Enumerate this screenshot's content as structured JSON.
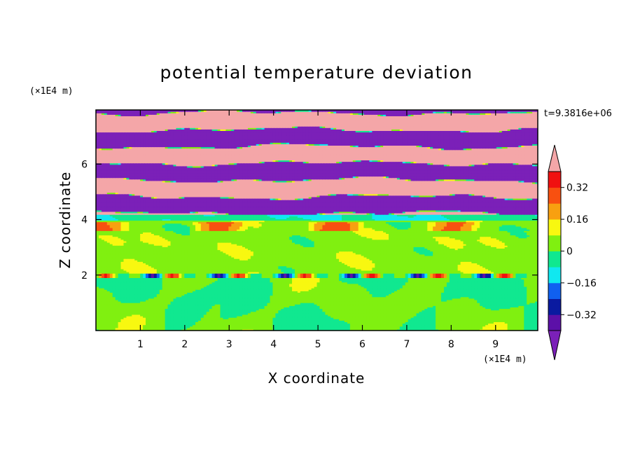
{
  "chart_data": {
    "type": "heatmap",
    "title": "potential temperature deviation",
    "xlabel": "X coordinate",
    "ylabel": "Z coordinate",
    "x_unit": "(×1E4 m)",
    "y_unit": "(×1E4 m)",
    "time_label": "t=9.3816e+06",
    "xlim": [
      0,
      9.95
    ],
    "ylim": [
      0,
      7.95
    ],
    "x_ticks": [
      1,
      2,
      3,
      4,
      5,
      6,
      7,
      8,
      9
    ],
    "y_ticks": [
      2,
      4,
      6
    ],
    "colorbar": {
      "levels": [
        -0.4,
        -0.32,
        -0.24,
        -0.16,
        -0.08,
        0,
        0.08,
        0.16,
        0.24,
        0.32,
        0.4
      ],
      "tick_labels": [
        "0.32",
        "0.16",
        "0",
        "−0.16",
        "−0.32"
      ],
      "tick_values": [
        0.32,
        0.16,
        0,
        -0.16,
        -0.32
      ],
      "under_color": "#7b20b8",
      "over_color": "#f4a6a8",
      "colors": [
        "#5c10a8",
        "#0a1aa0",
        "#1060f0",
        "#10e8f0",
        "#10e890",
        "#80f010",
        "#f8f810",
        "#f8a010",
        "#f85010",
        "#f01010"
      ]
    },
    "regions": {
      "lower_layer": "z 0–2: mix of values near -0.08 and 0 with large-scale cells",
      "inversion": "thin band near z = 2 with values -0.32 to 0.32",
      "middle_layer": "z 2–4.2: mostly 0 to 0.08 with patches of -0.08",
      "upper_layer": "z 4.2–7.95: alternating layers of values below -0.4 and above 0.4"
    }
  }
}
